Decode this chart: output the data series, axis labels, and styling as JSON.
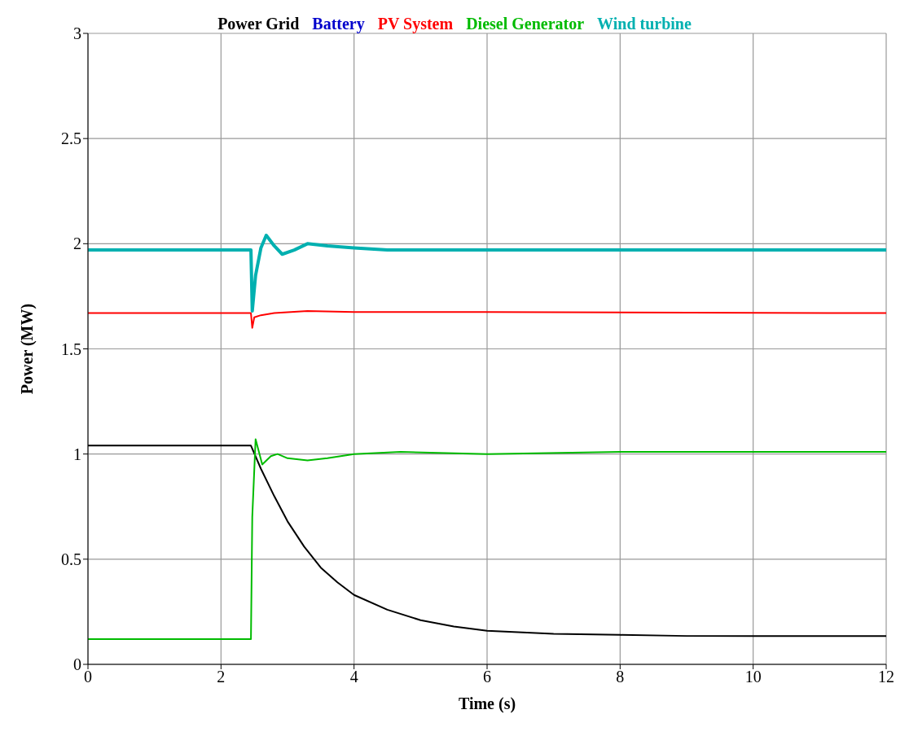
{
  "chart_data": {
    "type": "line",
    "xlabel": "Time (s)",
    "ylabel": "Power (MW)",
    "xlim": [
      0,
      12
    ],
    "xticks": [
      0,
      2,
      4,
      6,
      8,
      10,
      12
    ],
    "ylim": [
      0,
      3
    ],
    "yticks": [
      0,
      0.5,
      1,
      1.5,
      2,
      2.5,
      3
    ],
    "grid": true,
    "legend": "top",
    "marker": "none",
    "line_style": "solid",
    "series": [
      {
        "name": "Power Grid",
        "color": "#000000",
        "x": [
          0,
          2.45,
          2.6,
          2.8,
          3,
          3.25,
          3.5,
          3.75,
          4,
          4.5,
          5,
          5.5,
          6,
          7,
          8,
          9,
          10,
          12
        ],
        "values": [
          1.04,
          1.04,
          0.93,
          0.8,
          0.68,
          0.56,
          0.46,
          0.39,
          0.33,
          0.26,
          0.21,
          0.18,
          0.16,
          0.145,
          0.14,
          0.135,
          0.135,
          0.135
        ]
      },
      {
        "name": "Battery",
        "color": "#0000cc"
      },
      {
        "name": "PV System",
        "color": "#ff0000",
        "x": [
          0,
          2.45,
          2.47,
          2.5,
          2.6,
          2.8,
          3.3,
          4,
          6,
          12
        ],
        "values": [
          1.67,
          1.67,
          1.6,
          1.65,
          1.66,
          1.67,
          1.68,
          1.675,
          1.675,
          1.67
        ]
      },
      {
        "name": "Diesel Generator",
        "color": "#00bb00",
        "x": [
          0,
          2.45,
          2.47,
          2.52,
          2.62,
          2.75,
          2.85,
          3,
          3.3,
          3.6,
          4,
          4.7,
          6,
          8,
          12
        ],
        "values": [
          0.12,
          0.12,
          0.7,
          1.07,
          0.95,
          0.99,
          1.0,
          0.98,
          0.97,
          0.98,
          1.0,
          1.01,
          1.0,
          1.01,
          1.01
        ]
      },
      {
        "name": "Wind turbine",
        "color": "#00b0b0",
        "x": [
          0,
          2.45,
          2.47,
          2.52,
          2.6,
          2.68,
          2.8,
          2.92,
          3.1,
          3.3,
          3.6,
          4,
          4.5,
          6,
          12
        ],
        "values": [
          1.97,
          1.97,
          1.68,
          1.85,
          1.98,
          2.04,
          1.99,
          1.95,
          1.97,
          2.0,
          1.99,
          1.98,
          1.97,
          1.97,
          1.97
        ]
      }
    ]
  }
}
